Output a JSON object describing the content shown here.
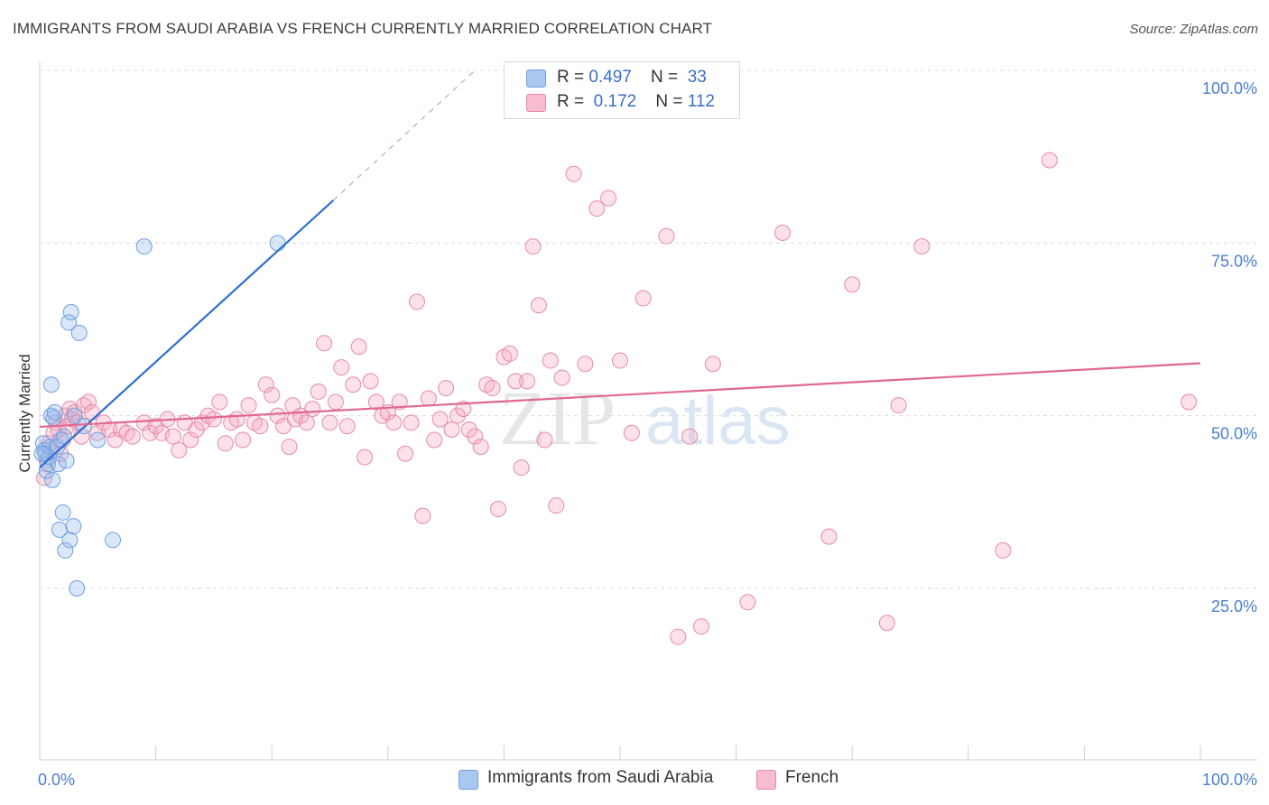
{
  "title": "IMMIGRANTS FROM SAUDI ARABIA VS FRENCH CURRENTLY MARRIED CORRELATION CHART",
  "source": "Source: ZipAtlas.com",
  "watermark": {
    "zip": "ZIP",
    "atlas": "atlas"
  },
  "legend": {
    "rows": [
      {
        "r_label": "R = ",
        "r_value": "0.497",
        "n_label": "N = ",
        "n_value": "33",
        "color": "#a9c8f0",
        "border": "#6f9fe0"
      },
      {
        "r_label": "R = ",
        "r_value": "0.172",
        "n_label": "N = ",
        "n_value": "112",
        "color": "#f7bccd",
        "border": "#e58aa8"
      }
    ]
  },
  "bottom_legend": {
    "series1": "Immigrants from Saudi Arabia",
    "series2": "French"
  },
  "colors": {
    "blue_fill": "rgba(150,185,235,0.35)",
    "blue_stroke": "#6f9fe0",
    "blue_line": "#2f6fd0",
    "pink_fill": "rgba(245,170,195,0.35)",
    "pink_stroke": "#e58aa8",
    "pink_line": "#e0688f",
    "grid": "#d9d9d9",
    "tick_text": "#4a7fd0"
  },
  "chart_data": {
    "type": "scatter",
    "title": "IMMIGRANTS FROM SAUDI ARABIA VS FRENCH CURRENTLY MARRIED CORRELATION CHART",
    "xlabel": "",
    "ylabel": "Currently Married",
    "xlim": [
      0,
      100
    ],
    "ylim": [
      0,
      102
    ],
    "x_tick_labels": [
      "0.0%",
      "100.0%"
    ],
    "y_ticks": [
      25,
      50,
      75,
      100
    ],
    "y_tick_labels": [
      "25.0%",
      "50.0%",
      "75.0%",
      "100.0%"
    ],
    "grid": "horizontal dashed",
    "legend_position": "top-center",
    "series": [
      {
        "name": "Immigrants from Saudi Arabia",
        "trend": {
          "x1": 0,
          "y1": 42.5,
          "x2": 25.3,
          "y2": 81.2,
          "dash_to_x": 37.5,
          "dash_to_y": 100
        },
        "points": [
          [
            0.3,
            46.0
          ],
          [
            0.4,
            45.0
          ],
          [
            0.5,
            44.5
          ],
          [
            0.6,
            42.0
          ],
          [
            0.7,
            43.0
          ],
          [
            0.8,
            44.0
          ],
          [
            0.9,
            45.5
          ],
          [
            1.0,
            54.5
          ],
          [
            1.0,
            50.0
          ],
          [
            1.1,
            40.7
          ],
          [
            1.2,
            49.7
          ],
          [
            1.3,
            50.5
          ],
          [
            1.5,
            45.5
          ],
          [
            1.6,
            43.0
          ],
          [
            1.7,
            33.5
          ],
          [
            1.8,
            46.5
          ],
          [
            2.0,
            36.0
          ],
          [
            2.1,
            47.0
          ],
          [
            2.2,
            30.5
          ],
          [
            2.3,
            43.5
          ],
          [
            2.5,
            63.5
          ],
          [
            2.6,
            32.0
          ],
          [
            2.7,
            65.0
          ],
          [
            2.9,
            34.0
          ],
          [
            3.0,
            50.0
          ],
          [
            3.2,
            25.0
          ],
          [
            3.4,
            62.0
          ],
          [
            3.8,
            48.5
          ],
          [
            5.0,
            46.5
          ],
          [
            6.3,
            32.0
          ],
          [
            9.0,
            74.5
          ],
          [
            20.5,
            75.0
          ],
          [
            0.2,
            44.5
          ]
        ]
      },
      {
        "name": "French",
        "trend": {
          "x1": 0,
          "y1": 48.4,
          "x2": 100,
          "y2": 57.6
        },
        "points": [
          [
            0.4,
            41.0
          ],
          [
            0.6,
            43.5
          ],
          [
            0.8,
            46.0
          ],
          [
            1.0,
            45.0
          ],
          [
            1.2,
            47.5
          ],
          [
            1.4,
            49.0
          ],
          [
            1.6,
            48.0
          ],
          [
            1.8,
            44.5
          ],
          [
            2.0,
            46.5
          ],
          [
            2.2,
            50.0
          ],
          [
            2.4,
            48.5
          ],
          [
            2.6,
            51.0
          ],
          [
            2.8,
            49.5
          ],
          [
            3.0,
            50.5
          ],
          [
            3.3,
            49.0
          ],
          [
            3.6,
            47.0
          ],
          [
            3.8,
            51.5
          ],
          [
            4.2,
            52.0
          ],
          [
            4.5,
            50.5
          ],
          [
            5.0,
            47.5
          ],
          [
            5.5,
            49.0
          ],
          [
            6.0,
            48.0
          ],
          [
            6.5,
            46.5
          ],
          [
            7.0,
            48.0
          ],
          [
            7.5,
            47.5
          ],
          [
            8.0,
            47.0
          ],
          [
            9.0,
            49.0
          ],
          [
            9.5,
            47.5
          ],
          [
            10.0,
            48.5
          ],
          [
            10.5,
            47.5
          ],
          [
            11.0,
            49.5
          ],
          [
            11.5,
            47.0
          ],
          [
            12.0,
            45.0
          ],
          [
            12.5,
            49.0
          ],
          [
            13.0,
            46.5
          ],
          [
            13.5,
            48.0
          ],
          [
            14.0,
            49.0
          ],
          [
            14.5,
            50.0
          ],
          [
            15.0,
            49.5
          ],
          [
            15.5,
            52.0
          ],
          [
            16.0,
            46.0
          ],
          [
            16.5,
            49.0
          ],
          [
            17.0,
            49.5
          ],
          [
            17.5,
            46.5
          ],
          [
            18.0,
            51.5
          ],
          [
            18.5,
            49.0
          ],
          [
            19.0,
            48.5
          ],
          [
            19.5,
            54.5
          ],
          [
            20.0,
            53.0
          ],
          [
            20.5,
            50.0
          ],
          [
            21.0,
            48.5
          ],
          [
            21.5,
            45.5
          ],
          [
            21.8,
            51.5
          ],
          [
            22.0,
            49.5
          ],
          [
            22.5,
            50.0
          ],
          [
            23.0,
            49.0
          ],
          [
            23.5,
            51.0
          ],
          [
            24.0,
            53.5
          ],
          [
            24.5,
            60.5
          ],
          [
            25.0,
            49.0
          ],
          [
            25.5,
            52.0
          ],
          [
            26.0,
            57.0
          ],
          [
            26.5,
            48.5
          ],
          [
            27.0,
            54.5
          ],
          [
            27.5,
            60.0
          ],
          [
            28.0,
            44.0
          ],
          [
            28.5,
            55.0
          ],
          [
            29.0,
            52.0
          ],
          [
            29.5,
            50.0
          ],
          [
            30.0,
            50.5
          ],
          [
            30.5,
            49.0
          ],
          [
            31.0,
            52.0
          ],
          [
            31.5,
            44.5
          ],
          [
            32.0,
            49.0
          ],
          [
            32.5,
            66.5
          ],
          [
            33.0,
            35.5
          ],
          [
            33.5,
            52.5
          ],
          [
            34.0,
            46.5
          ],
          [
            34.5,
            49.5
          ],
          [
            35.0,
            54.0
          ],
          [
            35.5,
            48.0
          ],
          [
            36.0,
            50.0
          ],
          [
            36.5,
            51.0
          ],
          [
            37.0,
            48.0
          ],
          [
            37.5,
            47.0
          ],
          [
            38.0,
            45.5
          ],
          [
            38.5,
            54.5
          ],
          [
            39.0,
            54.0
          ],
          [
            39.5,
            36.5
          ],
          [
            40.0,
            58.5
          ],
          [
            40.5,
            59.0
          ],
          [
            41.0,
            55.0
          ],
          [
            41.5,
            42.5
          ],
          [
            42.0,
            55.0
          ],
          [
            42.5,
            74.5
          ],
          [
            43.0,
            66.0
          ],
          [
            43.5,
            46.5
          ],
          [
            44.0,
            58.0
          ],
          [
            44.5,
            37.0
          ],
          [
            45.0,
            55.5
          ],
          [
            46.0,
            85.0
          ],
          [
            47.0,
            57.5
          ],
          [
            48.0,
            80.0
          ],
          [
            49.0,
            81.5
          ],
          [
            50.0,
            58.0
          ],
          [
            51.0,
            47.5
          ],
          [
            52.0,
            67.0
          ],
          [
            54.0,
            76.0
          ],
          [
            55.0,
            18.0
          ],
          [
            56.0,
            47.0
          ],
          [
            57.0,
            19.5
          ],
          [
            58.0,
            57.5
          ],
          [
            61.0,
            23.0
          ],
          [
            64.0,
            76.5
          ],
          [
            68.0,
            32.5
          ],
          [
            70.0,
            69.0
          ],
          [
            73.0,
            20.0
          ],
          [
            74.0,
            51.5
          ],
          [
            76.0,
            74.5
          ],
          [
            83.0,
            30.5
          ],
          [
            87.0,
            87.0
          ],
          [
            99.0,
            52.0
          ]
        ]
      }
    ]
  }
}
